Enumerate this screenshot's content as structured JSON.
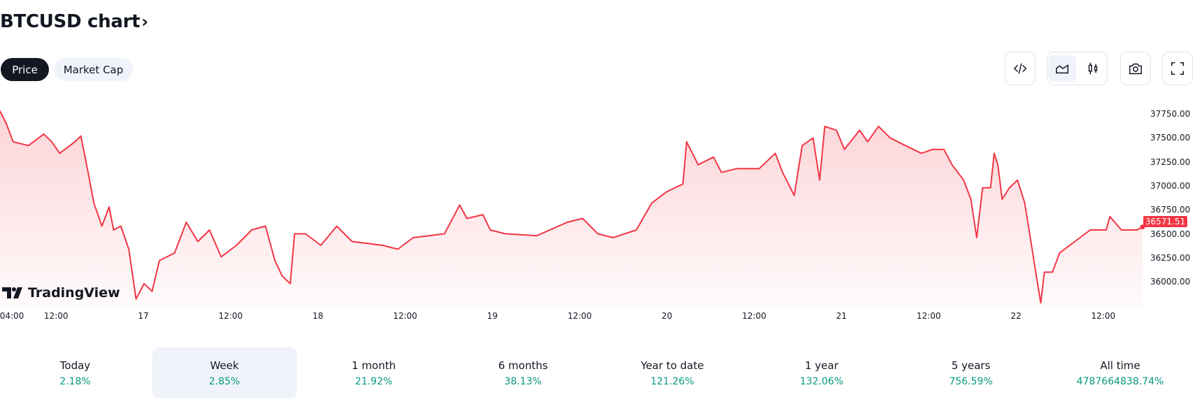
{
  "header": {
    "title": "BTCUSD chart",
    "chevron": "›"
  },
  "tabs": [
    {
      "label": "Price",
      "active": true
    },
    {
      "label": "Market Cap",
      "active": false
    }
  ],
  "toolbar": {
    "icons": [
      "code-embed-icon",
      "area-chart-icon",
      "candles-icon",
      "camera-icon",
      "fullscreen-icon"
    ]
  },
  "logo": "TradingView",
  "colors": {
    "line": "#f23645",
    "positive": "#089981",
    "dark": "#131722"
  },
  "chart_data": {
    "type": "area",
    "title": "BTCUSD",
    "y_ticks": [
      "37750.00",
      "37500.00",
      "37250.00",
      "37000.00",
      "36750.00",
      "36500.00",
      "36250.00",
      "36000.00"
    ],
    "x_ticks": [
      {
        "h": 0.3,
        "label": "04:00"
      },
      {
        "h": 8,
        "label": "12:00"
      },
      {
        "h": 20,
        "label": "17"
      },
      {
        "h": 32,
        "label": "12:00"
      },
      {
        "h": 44,
        "label": "18"
      },
      {
        "h": 56,
        "label": "12:00"
      },
      {
        "h": 68,
        "label": "19"
      },
      {
        "h": 80,
        "label": "12:00"
      },
      {
        "h": 92,
        "label": "20"
      },
      {
        "h": 104,
        "label": "12:00"
      },
      {
        "h": 116,
        "label": "21"
      },
      {
        "h": 128,
        "label": "12:00"
      },
      {
        "h": 140,
        "label": "22"
      },
      {
        "h": 152,
        "label": "12:00"
      }
    ],
    "ylim": [
      35750,
      37900
    ],
    "last_price": "36571.51",
    "xunit": "hours since 16th 04:00",
    "points": [
      [
        0,
        37820
      ],
      [
        1.1,
        37660
      ],
      [
        2.1,
        37460
      ],
      [
        4.2,
        37420
      ],
      [
        6.3,
        37540
      ],
      [
        7.4,
        37460
      ],
      [
        8.5,
        37340
      ],
      [
        10.6,
        37460
      ],
      [
        11.4,
        37520
      ],
      [
        12.2,
        37220
      ],
      [
        13.2,
        36820
      ],
      [
        14.3,
        36580
      ],
      [
        15.3,
        36780
      ],
      [
        15.9,
        36540
      ],
      [
        16.9,
        36580
      ],
      [
        18,
        36340
      ],
      [
        19,
        35820
      ],
      [
        20.1,
        35980
      ],
      [
        21.2,
        35900
      ],
      [
        22.2,
        36220
      ],
      [
        24.3,
        36300
      ],
      [
        25.9,
        36620
      ],
      [
        27.5,
        36420
      ],
      [
        29.1,
        36540
      ],
      [
        30.7,
        36260
      ],
      [
        32.8,
        36380
      ],
      [
        34.9,
        36540
      ],
      [
        36.8,
        36580
      ],
      [
        38.1,
        36220
      ],
      [
        39.1,
        36060
      ],
      [
        40.2,
        35980
      ],
      [
        40.8,
        36500
      ],
      [
        42.3,
        36500
      ],
      [
        44.4,
        36380
      ],
      [
        46.6,
        36580
      ],
      [
        48.7,
        36420
      ],
      [
        52.9,
        36380
      ],
      [
        55,
        36340
      ],
      [
        57.1,
        36460
      ],
      [
        61.4,
        36500
      ],
      [
        63.5,
        36800
      ],
      [
        64.5,
        36660
      ],
      [
        66.7,
        36700
      ],
      [
        67.7,
        36540
      ],
      [
        69.8,
        36500
      ],
      [
        74.1,
        36480
      ],
      [
        78.3,
        36620
      ],
      [
        80.4,
        36660
      ],
      [
        82.5,
        36500
      ],
      [
        84.6,
        36460
      ],
      [
        87.8,
        36540
      ],
      [
        89.9,
        36820
      ],
      [
        92,
        36940
      ],
      [
        94.2,
        37020
      ],
      [
        94.7,
        37460
      ],
      [
        96.3,
        37220
      ],
      [
        98.4,
        37300
      ],
      [
        99.5,
        37140
      ],
      [
        101.6,
        37180
      ],
      [
        104.7,
        37180
      ],
      [
        105.8,
        37260
      ],
      [
        106.9,
        37340
      ],
      [
        107.9,
        37140
      ],
      [
        109.5,
        36900
      ],
      [
        110.6,
        37420
      ],
      [
        112.1,
        37500
      ],
      [
        113,
        37060
      ],
      [
        113.7,
        37620
      ],
      [
        115.3,
        37580
      ],
      [
        116.4,
        37380
      ],
      [
        118.5,
        37580
      ],
      [
        119.6,
        37460
      ],
      [
        121.1,
        37620
      ],
      [
        122.7,
        37500
      ],
      [
        124.8,
        37420
      ],
      [
        127,
        37340
      ],
      [
        128.5,
        37380
      ],
      [
        130.1,
        37380
      ],
      [
        131.2,
        37220
      ],
      [
        132.8,
        37060
      ],
      [
        133.8,
        36860
      ],
      [
        134.6,
        36460
      ],
      [
        135.4,
        36980
      ],
      [
        136.5,
        36980
      ],
      [
        137,
        37340
      ],
      [
        137.5,
        37220
      ],
      [
        138.1,
        36860
      ],
      [
        139.1,
        36980
      ],
      [
        140.2,
        37060
      ],
      [
        141.2,
        36820
      ],
      [
        142.3,
        36300
      ],
      [
        142.8,
        36060
      ],
      [
        143.4,
        35780
      ],
      [
        143.9,
        36100
      ],
      [
        145,
        36100
      ],
      [
        146,
        36300
      ],
      [
        148.1,
        36420
      ],
      [
        150.2,
        36540
      ],
      [
        152.4,
        36540
      ],
      [
        152.9,
        36680
      ],
      [
        154.5,
        36540
      ],
      [
        156.6,
        36540
      ],
      [
        157.4,
        36571.51
      ]
    ]
  },
  "periods": [
    {
      "label": "Today",
      "value": "2.18%"
    },
    {
      "label": "Week",
      "value": "2.85%",
      "selected": true
    },
    {
      "label": "1 month",
      "value": "21.92%"
    },
    {
      "label": "6 months",
      "value": "38.13%"
    },
    {
      "label": "Year to date",
      "value": "121.26%"
    },
    {
      "label": "1 year",
      "value": "132.06%"
    },
    {
      "label": "5 years",
      "value": "756.59%"
    },
    {
      "label": "All time",
      "value": "4787664838.74%"
    }
  ]
}
